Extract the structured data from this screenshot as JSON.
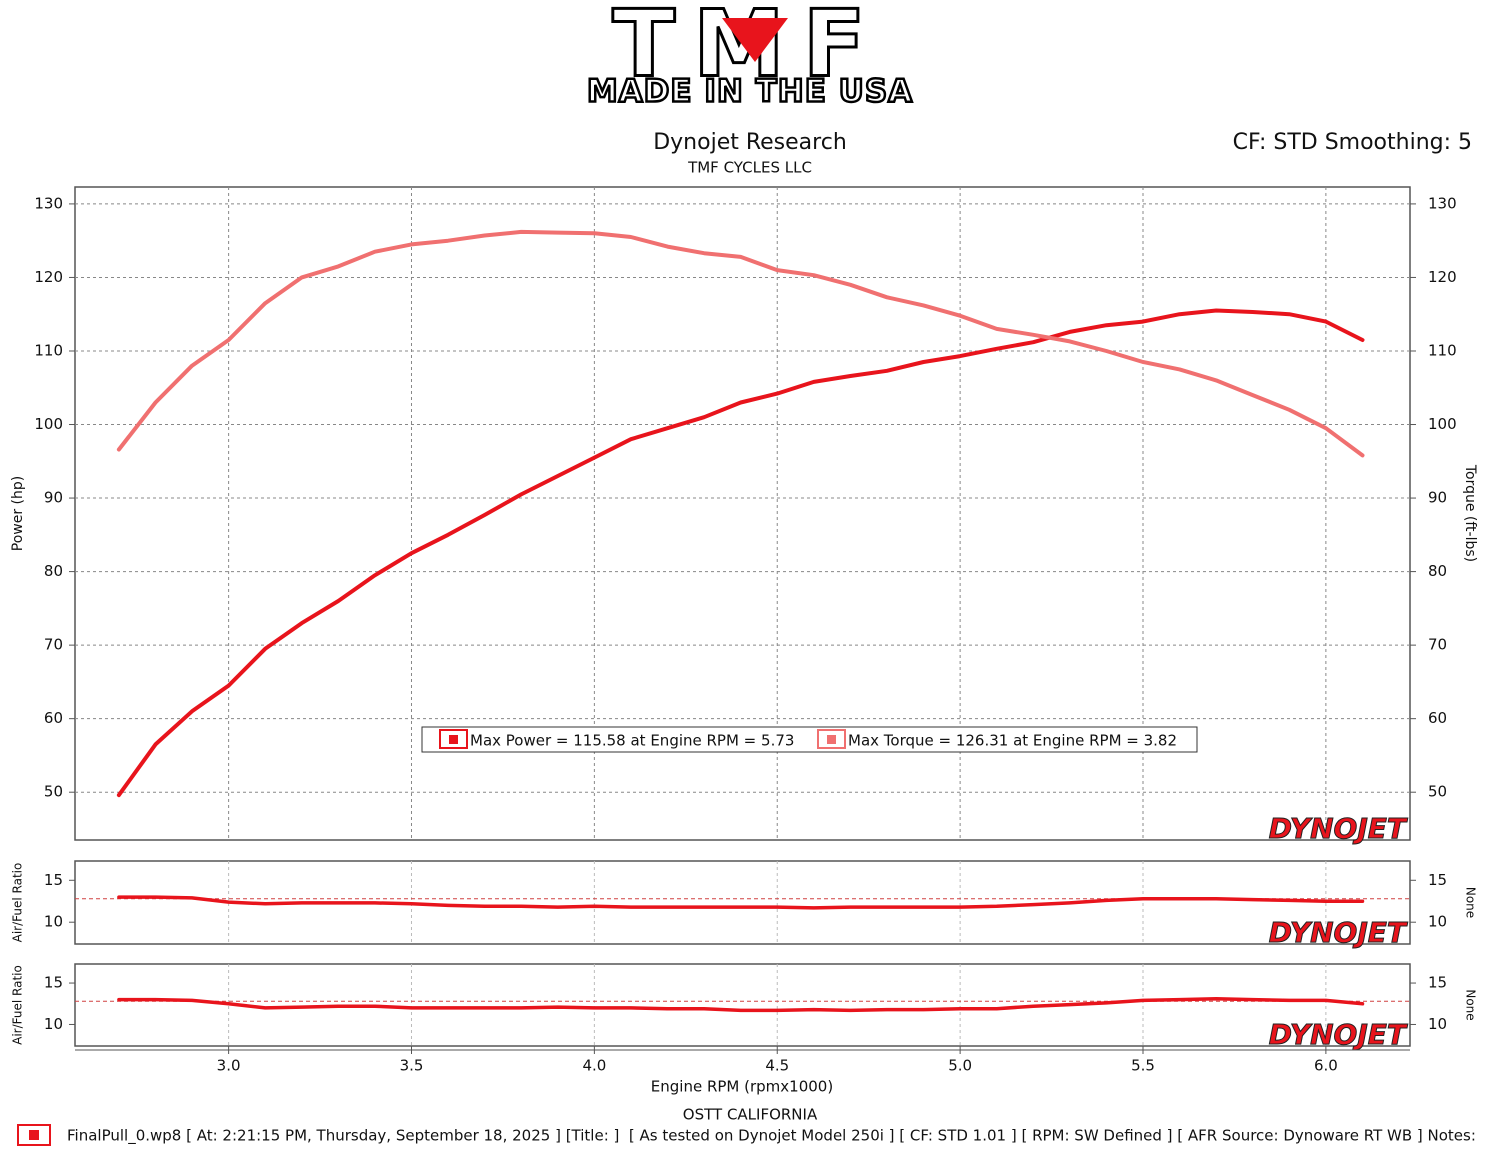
{
  "header": {
    "logo": "TMF",
    "logo_subtitle": "MADE IN THE USA",
    "title": "Dynojet Research",
    "subtitle": "TMF CYCLES LLC",
    "settings": "CF: STD Smoothing: 5"
  },
  "x_axis": {
    "label": "Engine RPM (rpmx1000)",
    "xlim": [
      2.58,
      6.23
    ],
    "xticks": [
      {
        "value": 3,
        "label": "3.0"
      },
      {
        "value": 3.5,
        "label": "3.5"
      },
      {
        "value": 4,
        "label": "4.0"
      },
      {
        "value": 4.5,
        "label": "4.5"
      },
      {
        "value": 5,
        "label": "5.0"
      },
      {
        "value": 5.5,
        "label": "5.5"
      },
      {
        "value": 6,
        "label": "6.0"
      }
    ]
  },
  "chart_data": [
    {
      "type": "line",
      "ylabel": "Power (hp)",
      "y2label": "Torque (ft-lbs)",
      "watermark": "DYNOJET",
      "grid": true,
      "legend": "lower-center",
      "ylim": [
        43.5,
        132.3
      ],
      "yticks": [
        50,
        60,
        70,
        80,
        90,
        100,
        110,
        120,
        130
      ],
      "y2lim": [
        43.5,
        132.3
      ],
      "y2ticks": [
        50,
        60,
        70,
        80,
        90,
        100,
        110,
        120,
        130
      ],
      "x": [
        2.7,
        2.8,
        2.9,
        3.0,
        3.1,
        3.2,
        3.3,
        3.4,
        3.5,
        3.6,
        3.7,
        3.8,
        3.9,
        4.0,
        4.1,
        4.2,
        4.3,
        4.4,
        4.5,
        4.6,
        4.7,
        4.8,
        4.9,
        5.0,
        5.1,
        5.2,
        5.3,
        5.4,
        5.5,
        5.6,
        5.7,
        5.8,
        5.9,
        6.0,
        6.1
      ],
      "series": [
        {
          "name": "Max Power = 115.58 at Engine RPM = 5.73",
          "color": "#e8141c",
          "values": [
            49.6,
            56.5,
            61,
            64.5,
            69.5,
            73,
            76,
            79.5,
            82.5,
            85,
            87.7,
            90.5,
            93,
            95.5,
            98,
            99.5,
            101,
            103,
            104.2,
            105.8,
            106.6,
            107.3,
            108.5,
            109.3,
            110.3,
            111.2,
            112.6,
            113.5,
            114,
            115,
            115.5,
            115.3,
            115,
            114,
            111.5
          ]
        },
        {
          "name": "Max Torque = 126.31 at Engine RPM = 3.82",
          "color": "#f07070",
          "axis": "y2",
          "values": [
            96.6,
            103,
            108,
            111.5,
            116.5,
            120,
            121.5,
            123.5,
            124.5,
            125,
            125.7,
            126.2,
            126.1,
            126,
            125.5,
            124.2,
            123.3,
            122.8,
            121,
            120.3,
            119,
            117.3,
            116.2,
            114.8,
            113,
            112.2,
            111.3,
            110,
            108.5,
            107.5,
            106,
            104,
            102,
            99.5,
            95.8
          ]
        }
      ]
    },
    {
      "type": "line",
      "ylabel": "Air/Fuel Ratio",
      "y2label": "None",
      "watermark": "DYNOJET",
      "grid": false,
      "ref_line": 12.8,
      "ylim": [
        7.4,
        17.3
      ],
      "yticks": [
        10,
        15
      ],
      "y2lim": [
        7.4,
        17.3
      ],
      "y2ticks": [
        10,
        15
      ],
      "x": [
        2.7,
        2.8,
        2.9,
        3.0,
        3.1,
        3.2,
        3.3,
        3.4,
        3.5,
        3.6,
        3.7,
        3.8,
        3.9,
        4.0,
        4.1,
        4.2,
        4.3,
        4.4,
        4.5,
        4.6,
        4.7,
        4.8,
        4.9,
        5.0,
        5.1,
        5.2,
        5.3,
        5.4,
        5.5,
        5.6,
        5.7,
        5.8,
        5.9,
        6.0,
        6.1
      ],
      "series": [
        {
          "color": "#e8141c",
          "values": [
            13.0,
            13.0,
            12.9,
            12.4,
            12.2,
            12.3,
            12.3,
            12.3,
            12.2,
            12.0,
            11.9,
            11.9,
            11.8,
            11.9,
            11.8,
            11.8,
            11.8,
            11.8,
            11.8,
            11.7,
            11.8,
            11.8,
            11.8,
            11.8,
            11.9,
            12.1,
            12.3,
            12.6,
            12.8,
            12.8,
            12.8,
            12.7,
            12.6,
            12.5,
            12.5
          ]
        }
      ]
    },
    {
      "type": "line",
      "ylabel": "Air/Fuel Ratio",
      "y2label": "None",
      "watermark": "DYNOJET",
      "grid": false,
      "ref_line": 12.8,
      "ylim": [
        7.4,
        17.3
      ],
      "yticks": [
        10,
        15
      ],
      "y2lim": [
        7.4,
        17.3
      ],
      "y2ticks": [
        10,
        15
      ],
      "x": [
        2.7,
        2.8,
        2.9,
        3.0,
        3.1,
        3.2,
        3.3,
        3.4,
        3.5,
        3.6,
        3.7,
        3.8,
        3.9,
        4.0,
        4.1,
        4.2,
        4.3,
        4.4,
        4.5,
        4.6,
        4.7,
        4.8,
        4.9,
        5.0,
        5.1,
        5.2,
        5.3,
        5.4,
        5.5,
        5.6,
        5.7,
        5.8,
        5.9,
        6.0,
        6.1
      ],
      "series": [
        {
          "color": "#e8141c",
          "values": [
            13.0,
            13.0,
            12.9,
            12.5,
            12.0,
            12.1,
            12.2,
            12.2,
            12.0,
            12.0,
            12.0,
            12.0,
            12.1,
            12.0,
            12.0,
            11.9,
            11.9,
            11.7,
            11.7,
            11.8,
            11.7,
            11.8,
            11.8,
            11.9,
            11.9,
            12.2,
            12.4,
            12.6,
            12.9,
            13.0,
            13.1,
            13.0,
            12.9,
            12.9,
            12.5
          ]
        }
      ]
    }
  ],
  "footer": {
    "location": "OSTT CALIFORNIA",
    "run_info": "FinalPull_0.wp8 [ At: 2:21:15 PM, Thursday, September 18, 2025 ] [Title: ]  [ As tested on Dynojet Model 250i ] [ CF: STD 1.01 ] [ RPM: SW Defined ] [ AFR Source: Dynoware RT WB ] Notes:"
  }
}
